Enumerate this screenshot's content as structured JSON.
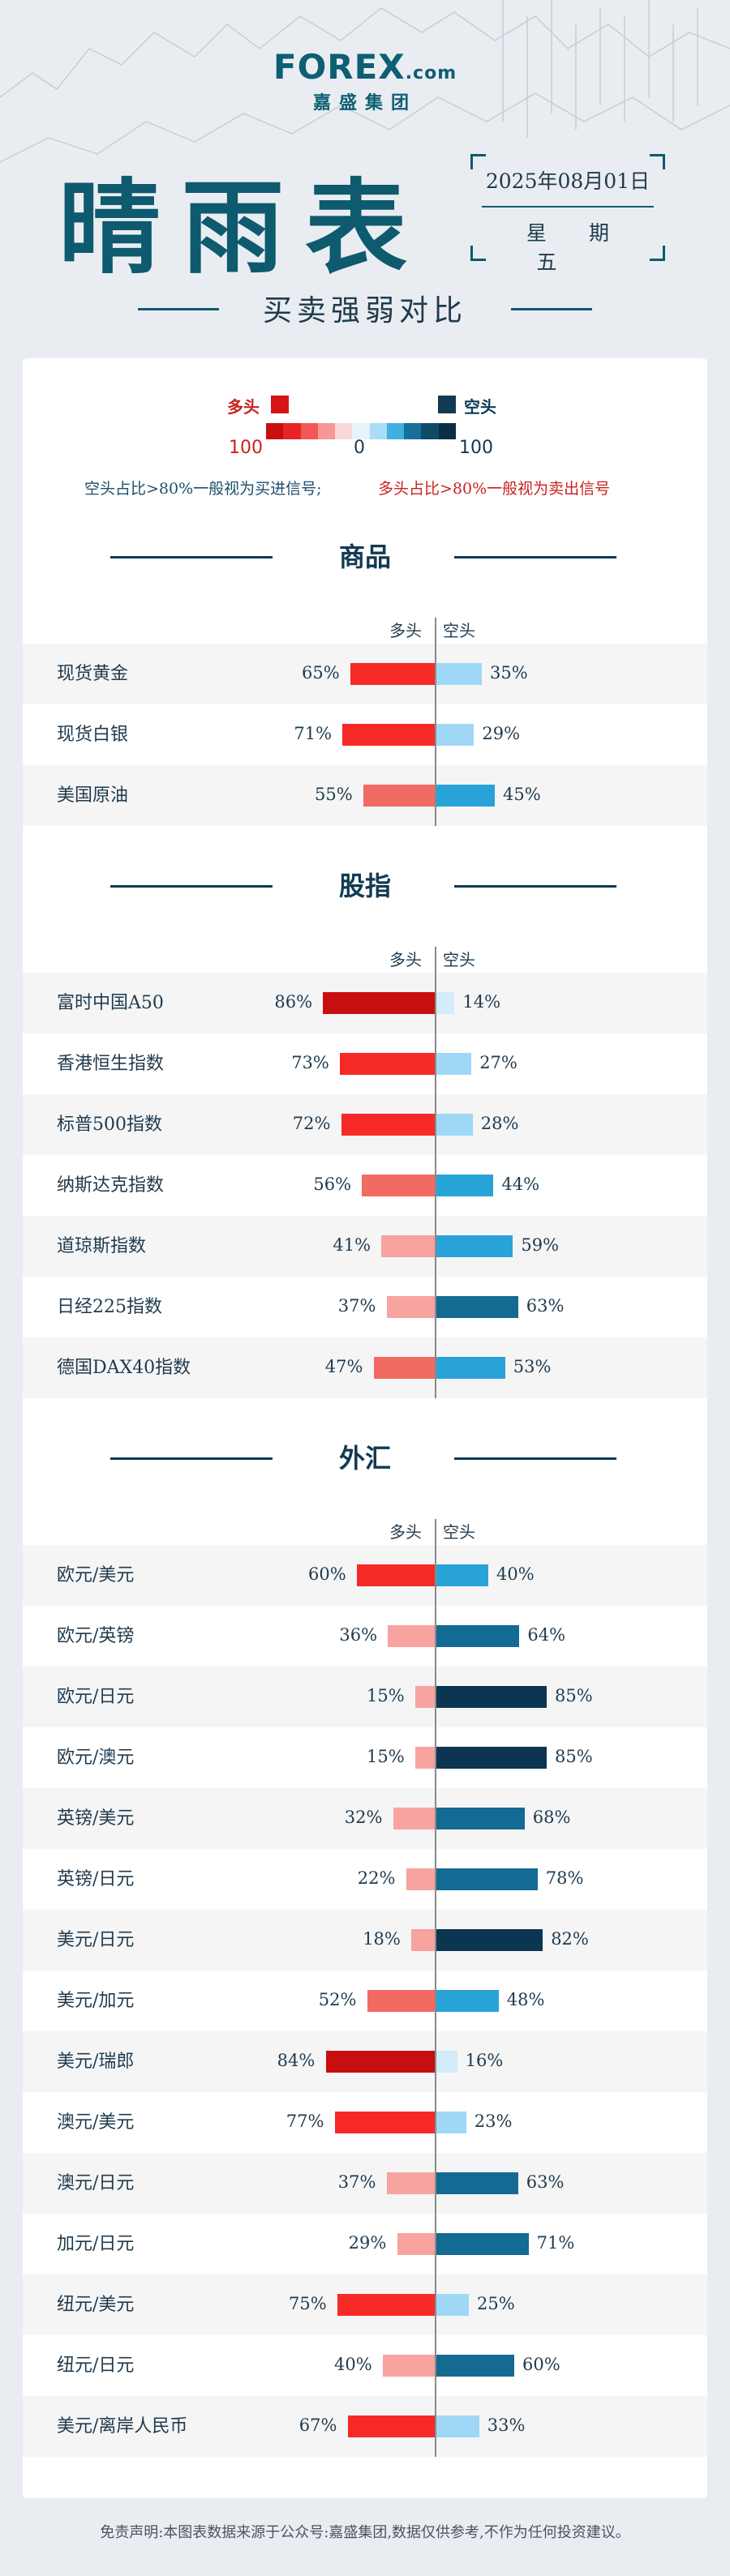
{
  "brand": {
    "logo_main": "FOREX",
    "logo_suffix": ".com",
    "logo_sub": "嘉盛集团"
  },
  "title": "晴雨表",
  "date": "2025年08月01日",
  "weekday": "星期五",
  "subtitle": "买卖强弱对比",
  "legend": {
    "long_label": "多头",
    "short_label": "空头",
    "scale_left": "100",
    "scale_mid": "0",
    "scale_right": "100",
    "note_short": "空头占比>80%一般视为买进信号;",
    "note_long": "多头占比>80%一般视为卖出信号",
    "scale_colors": [
      "#c80f0f",
      "#e82424",
      "#f25858",
      "#f79797",
      "#fbd8d8",
      "#e6f3fb",
      "#a9dcf6",
      "#3fb0df",
      "#16709a",
      "#0f4a69",
      "#0a2e45"
    ]
  },
  "colors": {
    "axis": "#8a8a8a",
    "long_accent": "#c9221f",
    "short_accent": "#0f3a55"
  },
  "col_long": "多头",
  "col_short": "空头",
  "chart_data": [
    {
      "type": "bar",
      "title": "商品",
      "categories": [
        "现货黄金",
        "现货白银",
        "美国原油"
      ],
      "series": [
        {
          "name": "多头",
          "values": [
            65,
            71,
            55
          ]
        },
        {
          "name": "空头",
          "values": [
            35,
            29,
            45
          ]
        }
      ],
      "ylim": [
        0,
        100
      ]
    },
    {
      "type": "bar",
      "title": "股指",
      "categories": [
        "富时中国A50",
        "香港恒生指数",
        "标普500指数",
        "纳斯达克指数",
        "道琼斯指数",
        "日经225指数",
        "德国DAX40指数"
      ],
      "series": [
        {
          "name": "多头",
          "values": [
            86,
            73,
            72,
            56,
            41,
            37,
            47
          ]
        },
        {
          "name": "空头",
          "values": [
            14,
            27,
            28,
            44,
            59,
            63,
            53
          ]
        }
      ],
      "ylim": [
        0,
        100
      ]
    },
    {
      "type": "bar",
      "title": "外汇",
      "categories": [
        "欧元/美元",
        "欧元/英镑",
        "欧元/日元",
        "欧元/澳元",
        "英镑/美元",
        "英镑/日元",
        "美元/日元",
        "美元/加元",
        "美元/瑞郎",
        "澳元/美元",
        "澳元/日元",
        "加元/日元",
        "纽元/美元",
        "纽元/日元",
        "美元/离岸人民币"
      ],
      "series": [
        {
          "name": "多头",
          "values": [
            60,
            36,
            15,
            15,
            32,
            22,
            18,
            52,
            84,
            77,
            37,
            29,
            75,
            40,
            67
          ]
        },
        {
          "name": "空头",
          "values": [
            40,
            64,
            85,
            85,
            68,
            78,
            82,
            48,
            16,
            23,
            63,
            71,
            25,
            60,
            33
          ]
        }
      ],
      "ylim": [
        0,
        100
      ]
    }
  ],
  "disclaimer": "免责声明:本图表数据来源于公众号:嘉盛集团,数据仅供参考,不作为任何投资建议。"
}
